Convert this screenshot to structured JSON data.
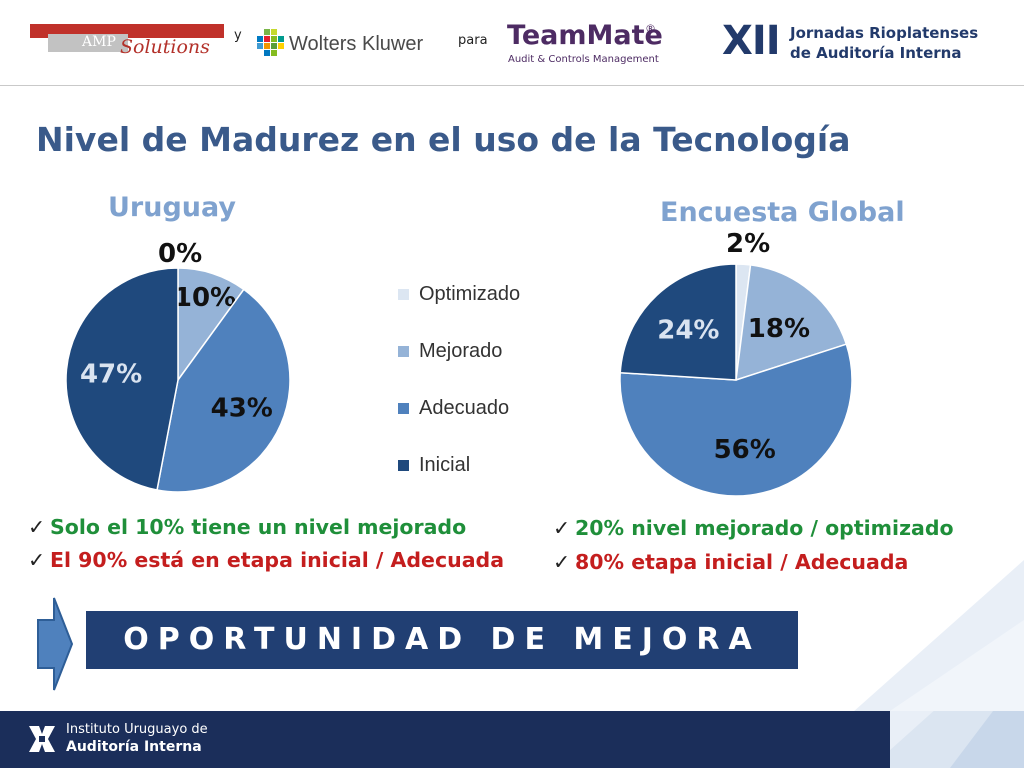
{
  "header": {
    "amp_text": "AMP",
    "amp_solutions": "Solutions",
    "conj_y": "y",
    "wolters_kluwer": "Wolters Kluwer",
    "conj_para": "para",
    "teammate_name": "TeamMate",
    "teammate_reg": "®",
    "teammate_sub": "Audit & Controls Management",
    "jornadas_numeral": "XII",
    "jornadas_line1": "Jornadas Rioplatenses",
    "jornadas_line2": "de Auditoría Interna"
  },
  "slide_title": "Nivel de Madurez en el uso de la Tecnología",
  "chart_data": [
    {
      "type": "pie",
      "title": "Uruguay",
      "categories": [
        "Optimizado",
        "Mejorado",
        "Adecuado",
        "Inicial"
      ],
      "values": [
        0,
        10,
        43,
        47
      ],
      "labels": [
        "0%",
        "10%",
        "43%",
        "47%"
      ]
    },
    {
      "type": "pie",
      "title": "Encuesta Global",
      "categories": [
        "Optimizado",
        "Mejorado",
        "Adecuado",
        "Inicial"
      ],
      "values": [
        2,
        18,
        56,
        24
      ],
      "labels": [
        "2%",
        "18%",
        "56%",
        "24%"
      ]
    }
  ],
  "legend": {
    "items": [
      {
        "label": "Optimizado",
        "color": "#dce6f2"
      },
      {
        "label": "Mejorado",
        "color": "#95b3d7"
      },
      {
        "label": "Adecuado",
        "color": "#4f81bd"
      },
      {
        "label": "Inicial",
        "color": "#1f497d"
      }
    ]
  },
  "bullets_left": [
    {
      "text": "Solo el 10% tiene un nivel mejorado",
      "color": "#1f8f3a"
    },
    {
      "text": "El 90% está en etapa inicial / Adecuada",
      "color": "#c41e1e"
    }
  ],
  "bullets_right": [
    {
      "text": "20% nivel mejorado / optimizado",
      "color": "#1f8f3a"
    },
    {
      "text": "80% etapa inicial / Adecuada",
      "color": "#c41e1e"
    }
  ],
  "check_glyph": "✓",
  "banner_text": "OPORTUNIDAD DE MEJORA",
  "footer": {
    "line1": "Instituto Uruguayo de",
    "line2": "Auditoría Interna"
  },
  "colors": {
    "title": "#3a5a8a",
    "chart_title": "#7fa2cf",
    "banner": "#213f73",
    "footer": "#1b2e5a"
  }
}
